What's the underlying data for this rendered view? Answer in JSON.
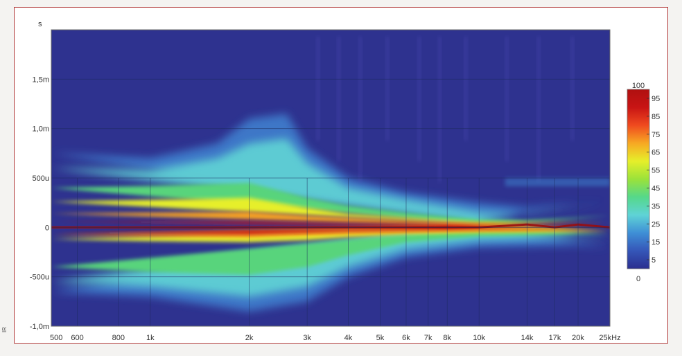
{
  "chart_data": {
    "type": "heatmap",
    "title": "",
    "xlabel": "",
    "ylabel": "",
    "y_unit_label": "s",
    "x_unit": "kHz",
    "x_scale": "log",
    "x_range_hz": [
      500,
      25000
    ],
    "y_range_s": [
      -0.001,
      0.002
    ],
    "x_ticks": [
      {
        "hz": 500,
        "label": "500"
      },
      {
        "hz": 600,
        "label": "600"
      },
      {
        "hz": 800,
        "label": "800"
      },
      {
        "hz": 1000,
        "label": "1k"
      },
      {
        "hz": 2000,
        "label": "2k"
      },
      {
        "hz": 3000,
        "label": "3k"
      },
      {
        "hz": 4000,
        "label": "4k"
      },
      {
        "hz": 5000,
        "label": "5k"
      },
      {
        "hz": 6000,
        "label": "6k"
      },
      {
        "hz": 7000,
        "label": "7k"
      },
      {
        "hz": 8000,
        "label": "8k"
      },
      {
        "hz": 10000,
        "label": "10k"
      },
      {
        "hz": 14000,
        "label": "14k"
      },
      {
        "hz": 17000,
        "label": "17k"
      },
      {
        "hz": 20000,
        "label": "20k"
      },
      {
        "hz": 25000,
        "label": "25kHz"
      }
    ],
    "y_ticks": [
      {
        "s": 0.0015,
        "label": "1,5m"
      },
      {
        "s": 0.001,
        "label": "1,0m"
      },
      {
        "s": 0.0005,
        "label": "500u"
      },
      {
        "s": 0.0,
        "label": "0"
      },
      {
        "s": -0.0005,
        "label": "-500u"
      },
      {
        "s": -0.001,
        "label": "-1,0m"
      }
    ],
    "colorbar": {
      "range": [
        0,
        100
      ],
      "top_label": "100",
      "bottom_label": "0",
      "ticks": [
        "95",
        "85",
        "75",
        "65",
        "55",
        "45",
        "35",
        "25",
        "15",
        "5"
      ],
      "tick_values": [
        95,
        85,
        75,
        65,
        55,
        45,
        35,
        25,
        15,
        5
      ],
      "colors": [
        "#2b2f8f",
        "#3556b8",
        "#3f8fd6",
        "#5fd3d6",
        "#55d88a",
        "#9be23a",
        "#e6ef2a",
        "#f7a823",
        "#ef4a1f",
        "#c81414",
        "#b01010"
      ]
    },
    "grid": true,
    "ridge": [
      {
        "hz": 500,
        "peak_s": 0.0
      },
      {
        "hz": 2000,
        "peak_s": 0.0
      },
      {
        "hz": 10000,
        "peak_s": 0.0
      },
      {
        "hz": 14000,
        "peak_s": 3e-05
      },
      {
        "hz": 17000,
        "peak_s": 0.0
      },
      {
        "hz": 20000,
        "peak_s": 3e-05
      },
      {
        "hz": 25000,
        "peak_s": 0.0
      }
    ]
  },
  "edge_mark": "IR"
}
